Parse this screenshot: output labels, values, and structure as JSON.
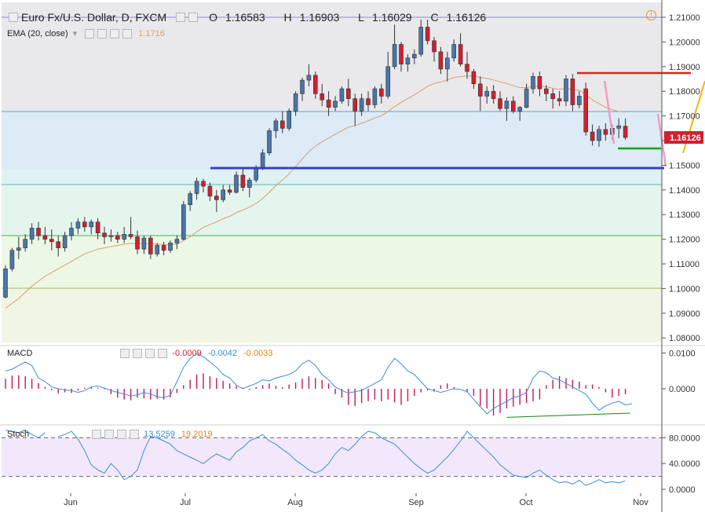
{
  "header": {
    "title": "Euro Fx/U.S. Dollar, D, FXCM",
    "open_label": "O",
    "open": "1.16583",
    "high_label": "H",
    "high": "1.16903",
    "low_label": "L",
    "low": "1.16029",
    "close_label": "C",
    "close": "1.16126"
  },
  "ema": {
    "label": "EMA (20, close)",
    "value": "1.1716"
  },
  "macd": {
    "label": "MACD",
    "values": [
      "-0.0009",
      "-0.0042",
      "-0.0033"
    ]
  },
  "stoch": {
    "label": "Stoch",
    "values": [
      "13.5259",
      "19.2019"
    ]
  },
  "price_tag": "1.16126",
  "colors": {
    "up": "#4a76a8",
    "down": "#d21f2f",
    "ema": "#d9a06e",
    "macd_line": "#3c8dde",
    "signal": "#0f8a0f",
    "hist": "#c2185b",
    "stoch_k": "#3c8dde"
  },
  "chart_data": [
    {
      "type": "candlestick",
      "name": "price",
      "y_ticks": [
        "1.21000",
        "1.20000",
        "1.19000",
        "1.18000",
        "1.17000",
        "1.16000",
        "1.15000",
        "1.14000",
        "1.13000",
        "1.12000",
        "1.11000",
        "1.10000",
        "1.09000",
        "1.08000"
      ],
      "x_ticks": [
        "Jun",
        "Jul",
        "Aug",
        "Sep",
        "Oct",
        "Nov"
      ],
      "ylim": [
        1.08,
        1.2135
      ],
      "candles": [
        [
          1.0965,
          1.1095,
          1.096,
          1.108
        ],
        [
          1.108,
          1.1165,
          1.107,
          1.1155
        ],
        [
          1.1155,
          1.121,
          1.112,
          1.1165
        ],
        [
          1.1165,
          1.122,
          1.115,
          1.12
        ],
        [
          1.12,
          1.1265,
          1.118,
          1.1245
        ],
        [
          1.1245,
          1.127,
          1.1195,
          1.1215
        ],
        [
          1.1215,
          1.125,
          1.118,
          1.12
        ],
        [
          1.12,
          1.124,
          1.1155,
          1.119
        ],
        [
          1.119,
          1.1215,
          1.113,
          1.1165
        ],
        [
          1.1165,
          1.123,
          1.115,
          1.1215
        ],
        [
          1.1215,
          1.127,
          1.1195,
          1.1245
        ],
        [
          1.1245,
          1.1285,
          1.122,
          1.127
        ],
        [
          1.127,
          1.129,
          1.123,
          1.125
        ],
        [
          1.125,
          1.128,
          1.122,
          1.127
        ],
        [
          1.127,
          1.1285,
          1.12,
          1.1225
        ],
        [
          1.1225,
          1.125,
          1.118,
          1.121
        ],
        [
          1.121,
          1.124,
          1.119,
          1.1215
        ],
        [
          1.1215,
          1.123,
          1.1185,
          1.12
        ],
        [
          1.12,
          1.125,
          1.1185,
          1.122
        ],
        [
          1.122,
          1.129,
          1.12,
          1.121
        ],
        [
          1.121,
          1.1235,
          1.114,
          1.116
        ],
        [
          1.116,
          1.1215,
          1.114,
          1.1205
        ],
        [
          1.1205,
          1.1215,
          1.112,
          1.114
        ],
        [
          1.114,
          1.1185,
          1.113,
          1.1175
        ],
        [
          1.1175,
          1.119,
          1.1135,
          1.1155
        ],
        [
          1.1155,
          1.1195,
          1.1145,
          1.1185
        ],
        [
          1.1185,
          1.1215,
          1.116,
          1.12
        ],
        [
          1.12,
          1.1355,
          1.1195,
          1.134
        ],
        [
          1.134,
          1.1395,
          1.1315,
          1.1385
        ],
        [
          1.1385,
          1.145,
          1.136,
          1.1435
        ],
        [
          1.1435,
          1.1445,
          1.139,
          1.1415
        ],
        [
          1.1415,
          1.143,
          1.1355,
          1.1375
        ],
        [
          1.1375,
          1.14,
          1.131,
          1.136
        ],
        [
          1.136,
          1.142,
          1.135,
          1.14
        ],
        [
          1.14,
          1.142,
          1.138,
          1.139
        ],
        [
          1.139,
          1.1475,
          1.1385,
          1.146
        ],
        [
          1.146,
          1.1485,
          1.1395,
          1.141
        ],
        [
          1.141,
          1.145,
          1.137,
          1.144
        ],
        [
          1.144,
          1.15,
          1.143,
          1.149
        ],
        [
          1.149,
          1.1565,
          1.148,
          1.155
        ],
        [
          1.155,
          1.165,
          1.154,
          1.164
        ],
        [
          1.164,
          1.169,
          1.161,
          1.168
        ],
        [
          1.168,
          1.172,
          1.163,
          1.165
        ],
        [
          1.165,
          1.173,
          1.164,
          1.172
        ],
        [
          1.172,
          1.18,
          1.17,
          1.179
        ],
        [
          1.179,
          1.1855,
          1.176,
          1.1845
        ],
        [
          1.1845,
          1.191,
          1.182,
          1.1865
        ],
        [
          1.1865,
          1.188,
          1.177,
          1.179
        ],
        [
          1.179,
          1.183,
          1.174,
          1.1765
        ],
        [
          1.1765,
          1.18,
          1.17,
          1.1735
        ],
        [
          1.1735,
          1.178,
          1.172,
          1.176
        ],
        [
          1.176,
          1.182,
          1.175,
          1.181
        ],
        [
          1.181,
          1.185,
          1.174,
          1.177
        ],
        [
          1.177,
          1.179,
          1.166,
          1.172
        ],
        [
          1.172,
          1.179,
          1.17,
          1.177
        ],
        [
          1.177,
          1.18,
          1.172,
          1.1745
        ],
        [
          1.1745,
          1.182,
          1.173,
          1.181
        ],
        [
          1.181,
          1.183,
          1.175,
          1.178
        ],
        [
          1.178,
          1.196,
          1.177,
          1.19
        ],
        [
          1.19,
          1.207,
          1.189,
          1.199
        ],
        [
          1.199,
          1.2,
          1.188,
          1.191
        ],
        [
          1.191,
          1.195,
          1.188,
          1.1935
        ],
        [
          1.1935,
          1.197,
          1.191,
          1.195
        ],
        [
          1.195,
          1.209,
          1.194,
          1.206
        ],
        [
          1.206,
          1.209,
          1.199,
          1.2005
        ],
        [
          1.2005,
          1.202,
          1.192,
          1.196
        ],
        [
          1.196,
          1.198,
          1.187,
          1.189
        ],
        [
          1.189,
          1.196,
          1.184,
          1.1935
        ],
        [
          1.1935,
          1.201,
          1.192,
          1.199
        ],
        [
          1.199,
          1.2035,
          1.19,
          1.191
        ],
        [
          1.191,
          1.196,
          1.185,
          1.188
        ],
        [
          1.188,
          1.189,
          1.181,
          1.183
        ],
        [
          1.183,
          1.186,
          1.172,
          1.178
        ],
        [
          1.178,
          1.182,
          1.175,
          1.18
        ],
        [
          1.18,
          1.1825,
          1.175,
          1.177
        ],
        [
          1.177,
          1.18,
          1.172,
          1.173
        ],
        [
          1.173,
          1.1775,
          1.168,
          1.176
        ],
        [
          1.176,
          1.178,
          1.171,
          1.172
        ],
        [
          1.172,
          1.174,
          1.168,
          1.1735
        ],
        [
          1.1735,
          1.183,
          1.173,
          1.181
        ],
        [
          1.181,
          1.1875,
          1.179,
          1.186
        ],
        [
          1.186,
          1.188,
          1.178,
          1.181
        ],
        [
          1.181,
          1.1825,
          1.176,
          1.179
        ],
        [
          1.179,
          1.181,
          1.173,
          1.177
        ],
        [
          1.177,
          1.18,
          1.174,
          1.176
        ],
        [
          1.176,
          1.1865,
          1.174,
          1.185
        ],
        [
          1.185,
          1.187,
          1.172,
          1.1745
        ],
        [
          1.1745,
          1.18,
          1.173,
          1.178
        ],
        [
          1.181,
          1.1835,
          1.162,
          1.1635
        ],
        [
          1.1635,
          1.1665,
          1.158,
          1.16
        ],
        [
          1.16,
          1.166,
          1.1575,
          1.1645
        ],
        [
          1.1645,
          1.167,
          1.16,
          1.1625
        ],
        [
          1.1625,
          1.1665,
          1.1605,
          1.165
        ],
        [
          1.165,
          1.169,
          1.161,
          1.166
        ],
        [
          1.16583,
          1.16903,
          1.16029,
          1.16126
        ]
      ],
      "ema": [
        1.092,
        1.094,
        1.096,
        1.0985,
        1.101,
        1.103,
        1.105,
        1.1065,
        1.108,
        1.1095,
        1.111,
        1.1125,
        1.114,
        1.115,
        1.116,
        1.1165,
        1.117,
        1.1175,
        1.118,
        1.1183,
        1.1182,
        1.1183,
        1.118,
        1.118,
        1.1178,
        1.1178,
        1.118,
        1.1195,
        1.121,
        1.123,
        1.1248,
        1.126,
        1.127,
        1.1283,
        1.1293,
        1.1308,
        1.1318,
        1.133,
        1.1345,
        1.1365,
        1.139,
        1.1418,
        1.144,
        1.1465,
        1.1495,
        1.1525,
        1.1555,
        1.1578,
        1.1595,
        1.161,
        1.1625,
        1.164,
        1.1655,
        1.166,
        1.167,
        1.168,
        1.1692,
        1.17,
        1.1718,
        1.1738,
        1.1755,
        1.177,
        1.1785,
        1.1803,
        1.182,
        1.1832,
        1.1838,
        1.1846,
        1.1856,
        1.186,
        1.1862,
        1.1862,
        1.1856,
        1.1852,
        1.1846,
        1.1838,
        1.1832,
        1.1822,
        1.1815,
        1.1815,
        1.182,
        1.182,
        1.1818,
        1.1812,
        1.1808,
        1.1812,
        1.1806,
        1.1805,
        1.1785,
        1.1765,
        1.175,
        1.1735,
        1.1725,
        1.1718,
        1.1716
      ]
    },
    {
      "type": "bar",
      "name": "macd",
      "y_ticks": [
        "0.0100",
        "0.0000"
      ],
      "ylim": [
        -0.0085,
        0.0115
      ],
      "histogram": [
        0.0028,
        0.0037,
        0.0038,
        0.0035,
        0.0028,
        0.0016,
        0.0005,
        -0.0004,
        -0.0013,
        -0.001,
        -0.0012,
        -0.0005,
        0.0003,
        0.0005,
        0.0003,
        -0.0002,
        -0.0015,
        -0.0025,
        -0.003,
        -0.0032,
        -0.0025,
        -0.0027,
        -0.003,
        -0.0028,
        -0.003,
        -0.0024,
        -0.0012,
        0.001,
        0.0025,
        0.004,
        0.0043,
        0.0035,
        0.003,
        0.0022,
        0.0015,
        0.0008,
        0.0003,
        -0.0003,
        0.0005,
        0.001,
        0.0015,
        0.0008,
        0.0004,
        0.0012,
        0.0018,
        0.0028,
        0.0035,
        0.003,
        0.0025,
        0.0015,
        -0.0015,
        -0.0025,
        -0.0045,
        -0.0048,
        -0.004,
        -0.0035,
        -0.003,
        -0.0035,
        -0.003,
        -0.0038,
        -0.0045,
        -0.0035,
        -0.002,
        -0.001,
        -0.0005,
        -0.0008,
        0.001,
        0.0015,
        0.0005,
        0.0,
        -0.001,
        -0.002,
        -0.0048,
        -0.0055,
        -0.0075,
        -0.0068,
        -0.0055,
        -0.005,
        -0.0045,
        -0.004,
        -0.0035,
        -0.003,
        0.001,
        0.0025,
        0.0035,
        0.003,
        0.0025,
        0.002,
        0.001,
        0.0012,
        0.0005,
        -0.001,
        -0.0025,
        -0.002,
        -0.0015,
        -0.0038,
        -0.0035,
        -0.003,
        -0.0025,
        -0.002,
        -0.0015
      ],
      "macd_line": [
        0.005,
        0.0055,
        0.0065,
        0.0075,
        0.0065,
        0.003,
        0.002,
        0.0005,
        0.0,
        -0.0003,
        -0.0005,
        -0.001,
        -0.0005,
        0.0005,
        0.0008,
        0.0002,
        -0.0005,
        -0.001,
        -0.0015,
        -0.002,
        -0.0017,
        -0.001,
        -0.0015,
        -0.0022,
        -0.0025,
        -0.0018,
        0.002,
        0.006,
        0.0085,
        0.0098,
        0.009,
        0.0075,
        0.006,
        0.004,
        0.003,
        0.001,
        0.0,
        0.0008,
        0.0015,
        0.0025,
        0.0022,
        0.003,
        0.0035,
        0.004,
        0.005,
        0.007,
        0.008,
        0.0065,
        0.004,
        0.0025,
        0.0005,
        -0.0005,
        -0.0012,
        -0.0008,
        -0.0005,
        0.0005,
        0.0015,
        0.0025,
        0.006,
        0.0085,
        0.007,
        0.005,
        0.004,
        0.002,
        0.0,
        -0.0005,
        -0.001,
        -0.0005,
        0.0,
        -0.0002,
        -0.0008,
        -0.003,
        -0.005,
        -0.007,
        -0.0055,
        -0.0045,
        -0.0035,
        -0.0025,
        -0.002,
        -0.001,
        0.003,
        0.005,
        0.0045,
        0.003,
        0.0025,
        0.0015,
        0.0005,
        -0.0005,
        -0.0015,
        -0.004,
        -0.006,
        -0.0048,
        -0.004,
        -0.0035,
        -0.0045,
        -0.0042
      ],
      "signal_segment": [
        [
          -0.008,
          -0.0068
        ],
        [
          -0.007,
          -0.0068
        ]
      ]
    },
    {
      "type": "line",
      "name": "stoch",
      "y_ticks": [
        "80.0000",
        "40.0000",
        "0.0000"
      ],
      "ylim": [
        -4,
        98
      ],
      "levels": [
        80,
        20
      ],
      "k_line": [
        92,
        90,
        88,
        92,
        85,
        80,
        88,
        82,
        82,
        85,
        90,
        78,
        60,
        38,
        30,
        25,
        40,
        30,
        15,
        20,
        30,
        60,
        82,
        80,
        75,
        70,
        60,
        55,
        50,
        45,
        40,
        48,
        55,
        50,
        45,
        58,
        65,
        75,
        80,
        85,
        75,
        70,
        62,
        55,
        45,
        38,
        30,
        25,
        30,
        40,
        55,
        65,
        60,
        70,
        82,
        90,
        88,
        80,
        75,
        70,
        60,
        50,
        40,
        32,
        25,
        30,
        40,
        50,
        62,
        75,
        90,
        80,
        70,
        60,
        50,
        38,
        30,
        22,
        20,
        18,
        25,
        30,
        22,
        15,
        10,
        12,
        8,
        14,
        6,
        10,
        15,
        10,
        12,
        10,
        13
      ],
      "k_segments": [
        [
          0,
          6
        ],
        [
          8,
          96
        ]
      ]
    }
  ]
}
